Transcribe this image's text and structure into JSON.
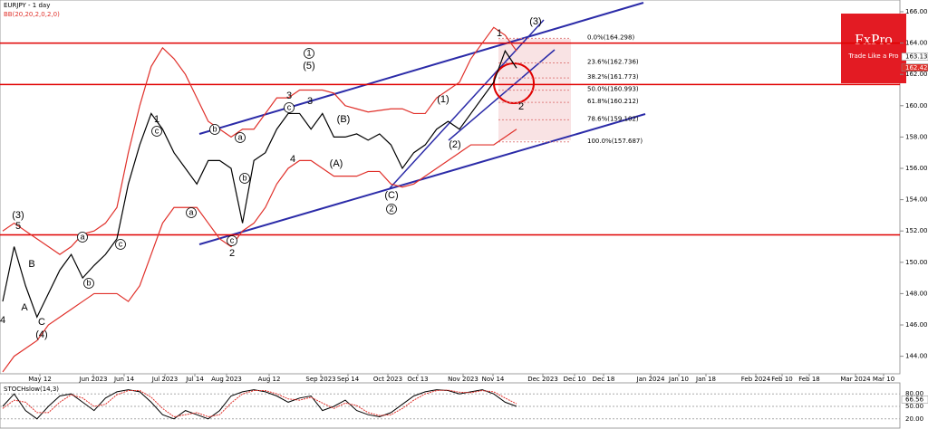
{
  "logo": {
    "name": "FxPro",
    "tagline": "Trade Like a Pro"
  },
  "chart_data": [
    {
      "type": "line",
      "title": "EURJPY - 1 day",
      "indicator": "BB(20,20,2,0,2,0)",
      "color": "#000000",
      "bb_color": "#e0302a",
      "values": [
        147.5,
        151,
        148.5,
        146.5,
        148,
        149.5,
        150.5,
        149,
        149.8,
        150.5,
        151.5,
        155,
        157.5,
        159.5,
        158.5,
        157,
        156,
        155,
        156.5,
        156.5,
        156,
        152.5,
        156.5,
        157,
        158.5,
        159.5,
        159.5,
        158.5,
        159.5,
        158,
        158,
        158.2,
        157.8,
        158.2,
        157.5,
        156,
        157,
        157.5,
        158.5,
        159,
        158.5,
        159.5,
        160.5,
        161.5,
        163.5,
        162.4
      ],
      "bb_upper": [
        152,
        152.5,
        152,
        151.5,
        151,
        150.5,
        151,
        151.8,
        152,
        152.5,
        153.5,
        157,
        160,
        162.5,
        163.7,
        163,
        162,
        160.5,
        159,
        158.5,
        158,
        158.5,
        158.5,
        159.5,
        160.5,
        160.5,
        161,
        161,
        161,
        160.8,
        160,
        159.8,
        159.6,
        159.7,
        159.8,
        159.8,
        159.5,
        159.5,
        160.5,
        161,
        161.5,
        163,
        164,
        165,
        164.5,
        163.5
      ],
      "bb_lower": [
        143,
        144,
        144.5,
        145,
        146,
        146.5,
        147,
        147.5,
        148,
        148,
        148,
        147.5,
        148.5,
        150.5,
        152.5,
        153.5,
        153.5,
        153.5,
        152.5,
        151.5,
        151,
        152,
        152.5,
        153.5,
        155,
        156,
        156.5,
        156.5,
        156,
        155.5,
        155.5,
        155.5,
        155.8,
        155.8,
        155,
        154.8,
        155,
        155.5,
        156,
        156.5,
        157,
        157.5,
        157.5,
        157.5,
        158,
        158.5
      ],
      "ylim": [
        142.88,
        166.75
      ],
      "yticks": [
        {
          "value": 144,
          "label": "144.000"
        },
        {
          "value": 146,
          "label": "146.000"
        },
        {
          "value": 148,
          "label": "148.000"
        },
        {
          "value": 150,
          "label": "150.000"
        },
        {
          "value": 152,
          "label": "152.000"
        },
        {
          "value": 154,
          "label": "154.000"
        },
        {
          "value": 156,
          "label": "156.000"
        },
        {
          "value": 158,
          "label": "158.000"
        },
        {
          "value": 160,
          "label": "160.000"
        },
        {
          "value": 162,
          "label": "162.000"
        },
        {
          "value": 164,
          "label": "164.000"
        },
        {
          "value": 166,
          "label": "166.000"
        }
      ],
      "xtick_labels": [
        "May 12",
        "Jun 2023",
        "Jun 14",
        "Jul 2023",
        "Jul 14",
        "Aug 2023",
        "Aug 12",
        "Sep 2023",
        "Sep 14",
        "Oct 2023",
        "Oct 13",
        "Nov 2023",
        "Nov 14",
        "Dec 2023",
        "Dec 10",
        "Dec 18",
        "Jan 2024",
        "Jan 10",
        "Jan 18",
        "Feb 2024",
        "Feb 10",
        "Feb 18",
        "Mar 2024",
        "Mar 10"
      ],
      "hlines": [
        164.0,
        161.35,
        151.75
      ],
      "hline_color": "#e00000",
      "price_labels": [
        {
          "value": 163.131,
          "label": "163.131"
        },
        {
          "value": 162.429,
          "label": "162.429"
        }
      ],
      "fib_levels": [
        {
          "value": 164.298,
          "label": "0.0%(164.298)"
        },
        {
          "value": 162.736,
          "label": "23.6%(162.736)"
        },
        {
          "value": 161.773,
          "label": "38.2%(161.773)"
        },
        {
          "value": 160.993,
          "label": "50.0%(160.993)"
        },
        {
          "value": 160.212,
          "label": "61.8%(160.212)"
        },
        {
          "value": 159.102,
          "label": "78.6%(159.102)"
        },
        {
          "value": 157.687,
          "label": "100.0%(157.687)"
        }
      ],
      "annotations": [
        {
          "text": "(3)"
        },
        {
          "text": "5"
        },
        {
          "text": "B"
        },
        {
          "text": "A"
        },
        {
          "text": "C"
        },
        {
          "text": "(4)"
        },
        {
          "text": "4"
        },
        {
          "text": "a",
          "circled": true
        },
        {
          "text": "b",
          "circled": true
        },
        {
          "text": "c",
          "circled": true
        },
        {
          "text": "1"
        },
        {
          "text": "c",
          "circled": true
        },
        {
          "text": "a",
          "circled": true
        },
        {
          "text": "b",
          "circled": true
        },
        {
          "text": "a",
          "circled": true
        },
        {
          "text": "b",
          "circled": true
        },
        {
          "text": "c",
          "circled": true
        },
        {
          "text": "2"
        },
        {
          "text": "3"
        },
        {
          "text": "c",
          "circled": true
        },
        {
          "text": "4"
        },
        {
          "text": "1",
          "circled": true
        },
        {
          "text": "(5)"
        },
        {
          "text": "3"
        },
        {
          "text": "(B)"
        },
        {
          "text": "(A)"
        },
        {
          "text": "(C)"
        },
        {
          "text": "2",
          "circled": true
        },
        {
          "text": "(1)"
        },
        {
          "text": "(2)"
        },
        {
          "text": "1"
        },
        {
          "text": "(3)"
        },
        {
          "text": "2"
        }
      ]
    },
    {
      "type": "stochastic",
      "title": "STOCHslow(14,3)",
      "color": "#000000",
      "signal_color": "#e0302a",
      "values": [
        50,
        80,
        40,
        20,
        50,
        75,
        80,
        60,
        40,
        70,
        85,
        90,
        85,
        60,
        30,
        20,
        40,
        30,
        20,
        40,
        75,
        85,
        90,
        85,
        75,
        60,
        70,
        75,
        40,
        50,
        65,
        40,
        30,
        25,
        35,
        55,
        75,
        85,
        90,
        88,
        80,
        85,
        90,
        80,
        60,
        50
      ],
      "signal": [
        45,
        65,
        60,
        35,
        35,
        60,
        78,
        70,
        50,
        55,
        78,
        88,
        88,
        72,
        45,
        25,
        30,
        35,
        25,
        30,
        58,
        80,
        88,
        88,
        80,
        68,
        65,
        72,
        58,
        45,
        58,
        52,
        35,
        28,
        30,
        45,
        65,
        80,
        88,
        89,
        84,
        83,
        88,
        85,
        70,
        56
      ],
      "current": {
        "value": 66.56,
        "label": "66.56"
      },
      "ylim": [
        0,
        100
      ],
      "yticks": [
        {
          "value": 20,
          "label": "20.00"
        },
        {
          "value": 50,
          "label": "50.00"
        },
        {
          "value": 80,
          "label": "80.00"
        }
      ]
    }
  ]
}
